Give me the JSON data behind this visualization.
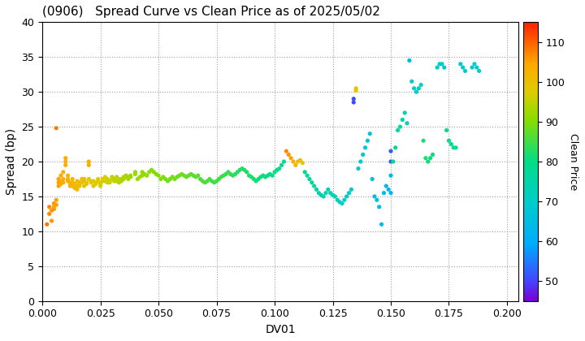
{
  "title": "(0906)   Spread Curve vs Clean Price as of 2025/05/02",
  "xlabel": "DV01",
  "ylabel": "Spread (bp)",
  "colorbar_label": "Clean Price",
  "xlim": [
    0.0,
    0.205
  ],
  "ylim": [
    0,
    40
  ],
  "xticks": [
    0.0,
    0.025,
    0.05,
    0.075,
    0.1,
    0.125,
    0.15,
    0.175,
    0.2
  ],
  "yticks": [
    0,
    5,
    10,
    15,
    20,
    25,
    30,
    35,
    40
  ],
  "cmap_min": 45,
  "cmap_max": 115,
  "cbar_ticks": [
    50,
    60,
    70,
    80,
    90,
    100,
    110
  ],
  "background": "#ffffff",
  "points": [
    [
      0.002,
      11.0,
      108
    ],
    [
      0.003,
      12.5,
      107
    ],
    [
      0.003,
      13.5,
      107
    ],
    [
      0.004,
      11.5,
      106
    ],
    [
      0.004,
      13.0,
      106
    ],
    [
      0.005,
      13.2,
      106
    ],
    [
      0.005,
      14.0,
      106
    ],
    [
      0.005,
      13.5,
      105
    ],
    [
      0.006,
      14.5,
      105
    ],
    [
      0.006,
      13.8,
      105
    ],
    [
      0.006,
      24.8,
      108
    ],
    [
      0.007,
      16.5,
      105
    ],
    [
      0.007,
      17.0,
      105
    ],
    [
      0.007,
      17.5,
      105
    ],
    [
      0.008,
      17.2,
      104
    ],
    [
      0.008,
      18.0,
      104
    ],
    [
      0.008,
      16.8,
      104
    ],
    [
      0.009,
      17.5,
      104
    ],
    [
      0.009,
      18.5,
      104
    ],
    [
      0.009,
      17.0,
      104
    ],
    [
      0.01,
      20.5,
      104
    ],
    [
      0.01,
      20.0,
      103
    ],
    [
      0.01,
      19.5,
      103
    ],
    [
      0.011,
      17.5,
      103
    ],
    [
      0.011,
      18.0,
      103
    ],
    [
      0.011,
      17.2,
      103
    ],
    [
      0.012,
      16.5,
      103
    ],
    [
      0.012,
      17.0,
      103
    ],
    [
      0.012,
      16.8,
      102
    ],
    [
      0.013,
      16.5,
      102
    ],
    [
      0.013,
      17.0,
      102
    ],
    [
      0.013,
      17.5,
      102
    ],
    [
      0.014,
      16.2,
      102
    ],
    [
      0.014,
      16.8,
      101
    ],
    [
      0.015,
      16.5,
      101
    ],
    [
      0.015,
      17.2,
      101
    ],
    [
      0.015,
      16.0,
      101
    ],
    [
      0.016,
      16.5,
      101
    ],
    [
      0.016,
      17.0,
      101
    ],
    [
      0.016,
      16.8,
      100
    ],
    [
      0.017,
      17.5,
      100
    ],
    [
      0.017,
      17.0,
      100
    ],
    [
      0.018,
      16.5,
      100
    ],
    [
      0.018,
      17.2,
      100
    ],
    [
      0.018,
      17.5,
      100
    ],
    [
      0.019,
      17.0,
      99
    ],
    [
      0.019,
      16.8,
      99
    ],
    [
      0.02,
      20.0,
      103
    ],
    [
      0.02,
      19.5,
      103
    ],
    [
      0.02,
      17.5,
      99
    ],
    [
      0.021,
      17.2,
      99
    ],
    [
      0.021,
      17.0,
      99
    ],
    [
      0.022,
      16.5,
      99
    ],
    [
      0.022,
      17.2,
      98
    ],
    [
      0.023,
      17.0,
      98
    ],
    [
      0.023,
      16.8,
      98
    ],
    [
      0.024,
      17.5,
      98
    ],
    [
      0.024,
      17.2,
      98
    ],
    [
      0.025,
      17.0,
      98
    ],
    [
      0.025,
      16.8,
      97
    ],
    [
      0.025,
      16.5,
      97
    ],
    [
      0.026,
      17.2,
      97
    ],
    [
      0.026,
      17.5,
      97
    ],
    [
      0.027,
      17.8,
      97
    ],
    [
      0.027,
      17.2,
      97
    ],
    [
      0.028,
      17.0,
      96
    ],
    [
      0.028,
      17.5,
      96
    ],
    [
      0.029,
      17.2,
      96
    ],
    [
      0.029,
      17.0,
      96
    ],
    [
      0.03,
      17.5,
      96
    ],
    [
      0.03,
      17.8,
      95
    ],
    [
      0.031,
      17.2,
      95
    ],
    [
      0.031,
      17.5,
      95
    ],
    [
      0.032,
      17.8,
      95
    ],
    [
      0.032,
      17.2,
      95
    ],
    [
      0.033,
      17.5,
      95
    ],
    [
      0.033,
      17.0,
      94
    ],
    [
      0.034,
      17.5,
      94
    ],
    [
      0.034,
      17.2,
      94
    ],
    [
      0.035,
      17.8,
      94
    ],
    [
      0.035,
      17.5,
      94
    ],
    [
      0.036,
      17.8,
      93
    ],
    [
      0.036,
      18.0,
      93
    ],
    [
      0.037,
      17.5,
      93
    ],
    [
      0.037,
      17.8,
      93
    ],
    [
      0.038,
      18.0,
      93
    ],
    [
      0.038,
      17.8,
      92
    ],
    [
      0.04,
      18.5,
      92
    ],
    [
      0.04,
      18.2,
      92
    ],
    [
      0.041,
      17.5,
      92
    ],
    [
      0.042,
      17.8,
      92
    ],
    [
      0.043,
      18.0,
      91
    ],
    [
      0.043,
      18.5,
      91
    ],
    [
      0.044,
      18.2,
      91
    ],
    [
      0.045,
      18.0,
      91
    ],
    [
      0.046,
      18.5,
      91
    ],
    [
      0.047,
      18.8,
      90
    ],
    [
      0.048,
      18.5,
      90
    ],
    [
      0.049,
      18.2,
      90
    ],
    [
      0.05,
      18.0,
      90
    ],
    [
      0.051,
      17.5,
      90
    ],
    [
      0.052,
      17.8,
      90
    ],
    [
      0.053,
      17.5,
      89
    ],
    [
      0.054,
      17.2,
      89
    ],
    [
      0.055,
      17.5,
      89
    ],
    [
      0.056,
      17.8,
      89
    ],
    [
      0.057,
      17.5,
      89
    ],
    [
      0.058,
      17.8,
      88
    ],
    [
      0.059,
      18.0,
      88
    ],
    [
      0.06,
      18.2,
      88
    ],
    [
      0.061,
      18.0,
      88
    ],
    [
      0.062,
      17.8,
      88
    ],
    [
      0.063,
      18.0,
      87
    ],
    [
      0.064,
      18.2,
      87
    ],
    [
      0.065,
      18.0,
      87
    ],
    [
      0.066,
      17.8,
      87
    ],
    [
      0.067,
      18.0,
      87
    ],
    [
      0.068,
      17.5,
      86
    ],
    [
      0.069,
      17.2,
      86
    ],
    [
      0.07,
      17.0,
      86
    ],
    [
      0.071,
      17.2,
      86
    ],
    [
      0.072,
      17.5,
      86
    ],
    [
      0.073,
      17.2,
      85
    ],
    [
      0.074,
      17.0,
      85
    ],
    [
      0.075,
      17.2,
      85
    ],
    [
      0.076,
      17.5,
      85
    ],
    [
      0.077,
      17.8,
      85
    ],
    [
      0.078,
      18.0,
      84
    ],
    [
      0.079,
      18.2,
      84
    ],
    [
      0.08,
      18.5,
      84
    ],
    [
      0.081,
      18.2,
      84
    ],
    [
      0.082,
      18.0,
      84
    ],
    [
      0.083,
      18.2,
      83
    ],
    [
      0.084,
      18.5,
      83
    ],
    [
      0.085,
      18.8,
      83
    ],
    [
      0.086,
      19.0,
      83
    ],
    [
      0.087,
      18.8,
      83
    ],
    [
      0.088,
      18.5,
      82
    ],
    [
      0.089,
      18.0,
      82
    ],
    [
      0.09,
      17.8,
      82
    ],
    [
      0.091,
      17.5,
      82
    ],
    [
      0.092,
      17.2,
      82
    ],
    [
      0.093,
      17.5,
      81
    ],
    [
      0.094,
      17.8,
      81
    ],
    [
      0.095,
      18.0,
      81
    ],
    [
      0.096,
      17.8,
      81
    ],
    [
      0.097,
      18.0,
      81
    ],
    [
      0.098,
      18.2,
      80
    ],
    [
      0.099,
      18.0,
      80
    ],
    [
      0.1,
      18.5,
      80
    ],
    [
      0.101,
      18.8,
      80
    ],
    [
      0.102,
      19.0,
      80
    ],
    [
      0.103,
      19.5,
      79
    ],
    [
      0.104,
      20.0,
      79
    ],
    [
      0.105,
      21.5,
      107
    ],
    [
      0.106,
      21.0,
      106
    ],
    [
      0.107,
      20.5,
      105
    ],
    [
      0.108,
      20.0,
      104
    ],
    [
      0.109,
      19.5,
      102
    ],
    [
      0.11,
      20.0,
      101
    ],
    [
      0.111,
      20.2,
      100
    ],
    [
      0.112,
      19.8,
      99
    ],
    [
      0.113,
      18.5,
      78
    ],
    [
      0.114,
      18.0,
      78
    ],
    [
      0.115,
      17.5,
      77
    ],
    [
      0.116,
      17.0,
      77
    ],
    [
      0.117,
      16.5,
      76
    ],
    [
      0.118,
      16.0,
      76
    ],
    [
      0.119,
      15.5,
      75
    ],
    [
      0.12,
      15.2,
      75
    ],
    [
      0.121,
      15.0,
      75
    ],
    [
      0.122,
      15.5,
      74
    ],
    [
      0.123,
      16.0,
      74
    ],
    [
      0.124,
      15.5,
      74
    ],
    [
      0.125,
      15.2,
      73
    ],
    [
      0.126,
      15.0,
      73
    ],
    [
      0.127,
      14.5,
      73
    ],
    [
      0.128,
      14.2,
      72
    ],
    [
      0.129,
      14.0,
      72
    ],
    [
      0.13,
      14.5,
      72
    ],
    [
      0.131,
      15.0,
      71
    ],
    [
      0.132,
      15.5,
      71
    ],
    [
      0.133,
      16.0,
      70
    ],
    [
      0.134,
      29.0,
      51
    ],
    [
      0.134,
      28.5,
      51
    ],
    [
      0.135,
      30.5,
      100
    ],
    [
      0.135,
      30.2,
      99
    ],
    [
      0.136,
      19.0,
      69
    ],
    [
      0.137,
      20.0,
      69
    ],
    [
      0.138,
      21.0,
      68
    ],
    [
      0.139,
      22.0,
      68
    ],
    [
      0.14,
      23.0,
      67
    ],
    [
      0.141,
      24.0,
      67
    ],
    [
      0.142,
      17.5,
      66
    ],
    [
      0.143,
      15.0,
      66
    ],
    [
      0.144,
      14.5,
      66
    ],
    [
      0.145,
      13.5,
      65
    ],
    [
      0.146,
      11.0,
      65
    ],
    [
      0.147,
      15.5,
      65
    ],
    [
      0.148,
      16.5,
      64
    ],
    [
      0.149,
      16.0,
      64
    ],
    [
      0.15,
      18.0,
      64
    ],
    [
      0.15,
      15.5,
      63
    ],
    [
      0.15,
      20.0,
      52
    ],
    [
      0.15,
      21.5,
      52
    ],
    [
      0.151,
      20.0,
      79
    ],
    [
      0.152,
      22.0,
      78
    ],
    [
      0.153,
      24.5,
      77
    ],
    [
      0.154,
      25.0,
      76
    ],
    [
      0.155,
      26.0,
      75
    ],
    [
      0.156,
      27.0,
      74
    ],
    [
      0.157,
      25.5,
      73
    ],
    [
      0.158,
      34.5,
      63
    ],
    [
      0.159,
      31.5,
      72
    ],
    [
      0.16,
      30.5,
      71
    ],
    [
      0.161,
      30.0,
      71
    ],
    [
      0.162,
      30.5,
      71
    ],
    [
      0.163,
      31.0,
      70
    ],
    [
      0.164,
      23.0,
      82
    ],
    [
      0.165,
      20.5,
      82
    ],
    [
      0.166,
      20.0,
      81
    ],
    [
      0.167,
      20.5,
      81
    ],
    [
      0.168,
      21.0,
      81
    ],
    [
      0.17,
      33.5,
      70
    ],
    [
      0.171,
      34.0,
      70
    ],
    [
      0.172,
      34.0,
      69
    ],
    [
      0.173,
      33.5,
      70
    ],
    [
      0.174,
      24.5,
      80
    ],
    [
      0.175,
      23.0,
      80
    ],
    [
      0.176,
      22.5,
      79
    ],
    [
      0.177,
      22.0,
      79
    ],
    [
      0.178,
      22.0,
      79
    ],
    [
      0.18,
      34.0,
      69
    ],
    [
      0.181,
      33.5,
      69
    ],
    [
      0.182,
      33.0,
      69
    ],
    [
      0.185,
      33.5,
      69
    ],
    [
      0.186,
      34.0,
      70
    ],
    [
      0.187,
      33.5,
      70
    ],
    [
      0.188,
      33.0,
      70
    ]
  ]
}
